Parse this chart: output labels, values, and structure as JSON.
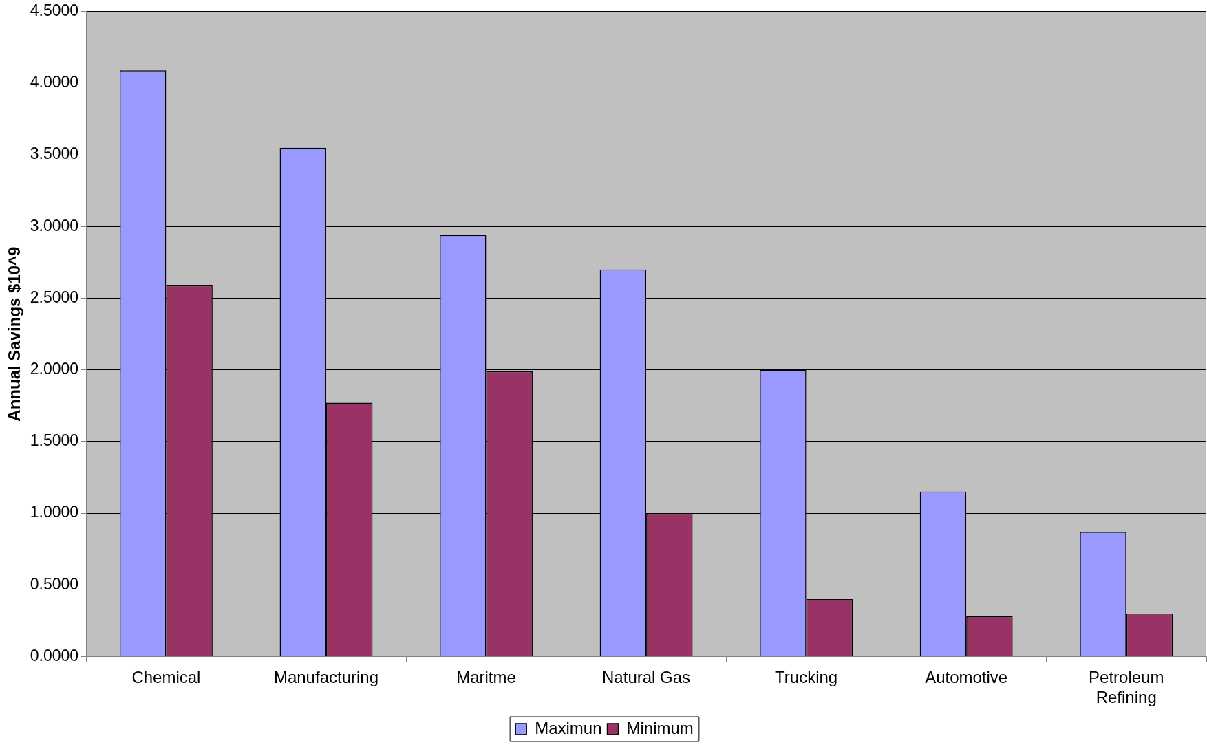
{
  "chart_data": {
    "type": "bar",
    "ylabel": "Annual Savings $10^9",
    "categories": [
      "Chemical",
      "Manufacturing",
      "Maritme",
      "Natural Gas",
      "Trucking",
      "Automotive",
      "Petroleum Refining"
    ],
    "series": [
      {
        "name": "Maximun",
        "color": "#9999ff",
        "values": [
          4.09,
          3.55,
          2.94,
          2.7,
          2.0,
          1.15,
          0.87
        ]
      },
      {
        "name": "Minimum",
        "color": "#993366",
        "values": [
          2.59,
          1.77,
          1.99,
          1.0,
          0.4,
          0.28,
          0.3
        ]
      }
    ],
    "ylim": [
      0,
      4.5
    ],
    "yticks": [
      {
        "value": 0,
        "label": "0.0000"
      },
      {
        "value": 0.5,
        "label": "0.5000"
      },
      {
        "value": 1,
        "label": "1.0000"
      },
      {
        "value": 1.5,
        "label": "1.5000"
      },
      {
        "value": 2,
        "label": "2.0000"
      },
      {
        "value": 2.5,
        "label": "2.5000"
      },
      {
        "value": 3,
        "label": "3.0000"
      },
      {
        "value": 3.5,
        "label": "3.5000"
      },
      {
        "value": 4,
        "label": "4.0000"
      },
      {
        "value": 4.5,
        "label": "4.5000"
      }
    ],
    "grid": "y",
    "legend": "bottom"
  }
}
